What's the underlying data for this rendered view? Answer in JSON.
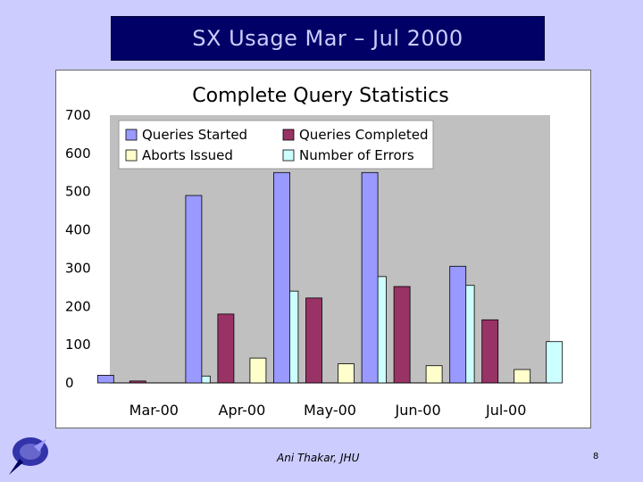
{
  "slide": {
    "title": "SX Usage Mar – Jul 2000",
    "footer_author": "Ani Thakar, JHU",
    "page_number": "8"
  },
  "colors": {
    "background": "#ccccff",
    "title_bg": "#000066",
    "title_text": "#ccccff",
    "plot_bg": "#c0c0c0"
  },
  "chart_data": {
    "type": "bar",
    "title": "Complete Query Statistics",
    "categories": [
      "Mar-00",
      "Apr-00",
      "May-00",
      "Jun-00",
      "Jul-00"
    ],
    "series": [
      {
        "name": "Queries Started",
        "color": "#9999ff",
        "values": [
          20,
          490,
          550,
          550,
          305
        ]
      },
      {
        "name": "Queries Completed",
        "color": "#993366",
        "values": [
          5,
          180,
          222,
          252,
          165
        ]
      },
      {
        "name": "Aborts Issued",
        "color": "#ffffcc",
        "values": [
          0,
          65,
          50,
          45,
          35
        ]
      },
      {
        "name": "Number of Errors",
        "color": "#ccffff",
        "values": [
          18,
          240,
          278,
          255,
          108
        ]
      }
    ],
    "y_ticks": [
      "0",
      "100",
      "200",
      "300",
      "400",
      "500",
      "600",
      "700"
    ],
    "ylim": [
      0,
      700
    ],
    "xlabel": "",
    "ylabel": "",
    "grid": false,
    "legend_position": "top-left"
  }
}
